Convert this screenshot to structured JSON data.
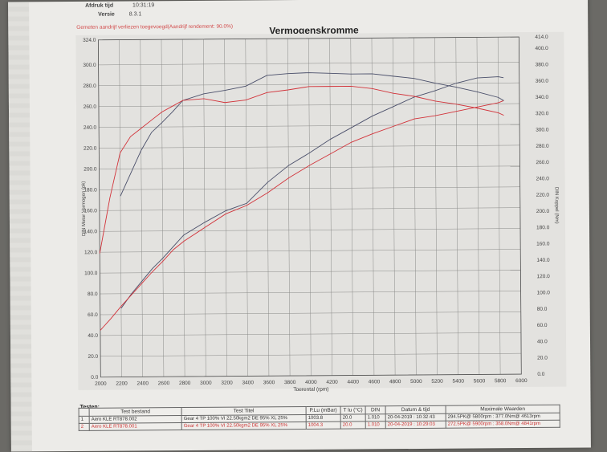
{
  "header": {
    "print_time_label": "Afdruk tijd",
    "print_time_value": "10:31:19",
    "version_label": "Versie",
    "version_value": "8.3.1",
    "subtitle": "Gemeten aandrijf verliezen toegevoegd(Aandrijf rendement: 90.0%)",
    "title": "Vermogenskromme"
  },
  "chart_data": {
    "type": "line",
    "title": "Vermogenskromme",
    "xlabel": "Toerental (rpm)",
    "ylabel_left": "DIN Motor Vermogen (pk)",
    "ylabel_right": "DIN Koppel (Nm)",
    "x_ticks": [
      "2000",
      "2200",
      "2400",
      "2600",
      "2800",
      "3000",
      "3200",
      "3400",
      "3600",
      "3800",
      "4000",
      "4200",
      "4400",
      "4600",
      "4800",
      "5000",
      "5200",
      "5400",
      "5600",
      "5800",
      "6000"
    ],
    "y_left_ticks": [
      "0.0",
      "20.0",
      "40.0",
      "60.0",
      "80.0",
      "100.0",
      "120.0",
      "140.0",
      "160.0",
      "180.0",
      "200.0",
      "220.0",
      "240.0",
      "260.0",
      "280.0",
      "300.0",
      "324.0"
    ],
    "y_right_ticks": [
      "0.0",
      "20.0",
      "40.0",
      "60.0",
      "80.0",
      "100.0",
      "120.0",
      "140.0",
      "160.0",
      "180.0",
      "200.0",
      "220.0",
      "240.0",
      "260.0",
      "280.0",
      "300.0",
      "320.0",
      "340.0",
      "360.0",
      "380.0",
      "400.0",
      "414.0"
    ],
    "xlim": [
      2000,
      6000
    ],
    "ylim_left": [
      0,
      324
    ],
    "ylim_right": [
      0,
      414
    ],
    "grid": true,
    "colors": {
      "run1": "#4a4f6a",
      "run2": "#d2333a"
    },
    "series": [
      {
        "axis": "left",
        "x": [
          2200,
          2300,
          2400,
          2500,
          2600,
          2700,
          2800,
          3000,
          3200,
          3400,
          3600,
          3800,
          4000,
          4200,
          4400,
          4600,
          4800,
          5000,
          5200,
          5400,
          5600,
          5800,
          5850
        ],
        "values": [
          66,
          80,
          92,
          104,
          114,
          125,
          136,
          148,
          159,
          166,
          186,
          202,
          214,
          227,
          238,
          249,
          258,
          267,
          273,
          280,
          285,
          286,
          285
        ]
      },
      {
        "axis": "left",
        "x": [
          2000,
          2100,
          2200,
          2300,
          2400,
          2500,
          2600,
          2700,
          2800,
          3000,
          3200,
          3400,
          3600,
          3800,
          4000,
          4200,
          4400,
          4600,
          4800,
          5000,
          5200,
          5400,
          5600,
          5800,
          5850
        ],
        "values": [
          45,
          56,
          68,
          79,
          90,
          101,
          111,
          122,
          130,
          143,
          156,
          164,
          176,
          190,
          202,
          213,
          224,
          232,
          239,
          246,
          249,
          253,
          257,
          261,
          263
        ]
      },
      {
        "axis": "right",
        "x": [
          2200,
          2300,
          2400,
          2500,
          2600,
          2700,
          2800,
          3000,
          3200,
          3400,
          3600,
          3800,
          4000,
          4200,
          4400,
          4600,
          4800,
          5000,
          5200,
          5400,
          5600,
          5800,
          5850
        ],
        "values": [
          222,
          250,
          278,
          300,
          312,
          325,
          339,
          347,
          351,
          356,
          369,
          371,
          372,
          371,
          370,
          370,
          367,
          364,
          358,
          353,
          347,
          340,
          336
        ]
      },
      {
        "axis": "right",
        "x": [
          2000,
          2100,
          2200,
          2300,
          2400,
          2500,
          2600,
          2700,
          2800,
          3000,
          3200,
          3400,
          3600,
          3800,
          4000,
          4200,
          4400,
          4600,
          4800,
          5000,
          5200,
          5400,
          5600,
          5800,
          5850
        ],
        "values": [
          152,
          220,
          275,
          295,
          305,
          315,
          325,
          332,
          339,
          341,
          336,
          339,
          348,
          351,
          355,
          355,
          355,
          352,
          346,
          342,
          336,
          332,
          327,
          321,
          318
        ]
      }
    ]
  },
  "tests_table": {
    "label": "Testen:",
    "headers": [
      "",
      "Test bestand",
      "Test Titel",
      "P.Lu (mBar)",
      "T lu (°C)",
      "DIN",
      "Datum & tijd",
      "Maximale Waarden"
    ],
    "rows": [
      [
        "1",
        "Aero KLE RT878.002",
        "Gear 4 TP 100% VI 22.50kgm2 DE 95% XL 25%",
        "1003.8",
        "20.0",
        "1.010",
        "20-04-2019 : 10:32:43",
        "294.5PK@ 5800rpm : 377.0Nm@ 4613rpm"
      ],
      [
        "2",
        "Aero KLE RT878.001",
        "Gear 4 TP 100% VI 22.50kgm2 DE 95% XL 25%",
        "1004.3",
        "20.0",
        "1.010",
        "20-04-2019 : 10:29:03",
        "272.5PK@ 5900rpm : 358.0Nm@ 4841rpm"
      ]
    ]
  }
}
